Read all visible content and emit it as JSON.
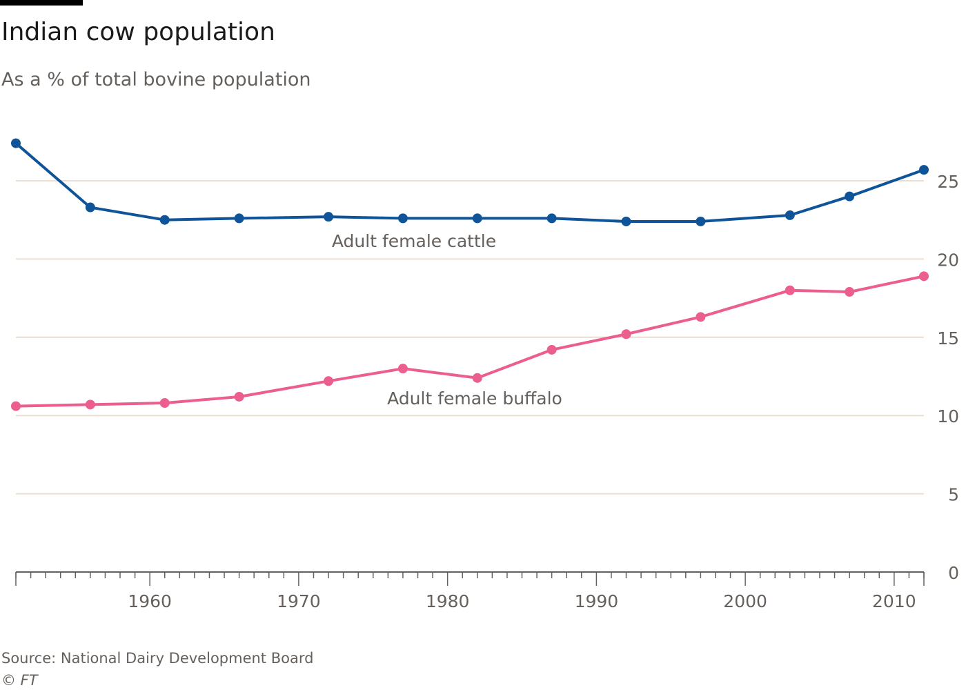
{
  "title": "Indian cow population",
  "subtitle": "As a % of total bovine population",
  "source": "Source: National Dairy Development Board",
  "credit": "© FT",
  "chart_data": {
    "type": "line",
    "title": "Indian cow population",
    "ylabel": "As a % of total bovine population",
    "xlim": [
      1951,
      2012
    ],
    "ylim": [
      0,
      25
    ],
    "yticks": [
      0,
      5,
      10,
      15,
      20,
      25
    ],
    "xticks": [
      1960,
      1970,
      1980,
      1990,
      2000,
      2010
    ],
    "grid": true,
    "x": [
      1951,
      1956,
      1961,
      1966,
      1972,
      1977,
      1982,
      1987,
      1992,
      1997,
      2003,
      2007,
      2012
    ],
    "series": [
      {
        "name": "Adult female cattle",
        "color": "#0f5499",
        "values": [
          27.4,
          23.3,
          22.5,
          22.6,
          22.7,
          22.6,
          22.6,
          22.6,
          22.4,
          22.4,
          22.8,
          24.0,
          25.7
        ]
      },
      {
        "name": "Adult female buffalo",
        "color": "#eb5e8d",
        "values": [
          10.6,
          10.7,
          10.8,
          11.2,
          12.2,
          13.0,
          12.4,
          14.2,
          15.2,
          16.3,
          18.0,
          17.9,
          18.9
        ]
      }
    ]
  }
}
